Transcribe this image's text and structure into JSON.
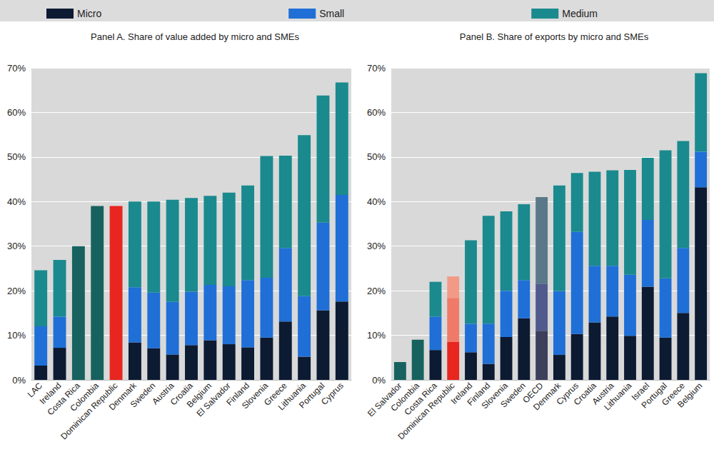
{
  "chart_data": [
    {
      "type": "bar",
      "title": "Panel A. Share of value added by micro and SMEs",
      "stacked": true,
      "grid": true,
      "legend": "top",
      "categories": [
        "LAC",
        "Ireland",
        "Costa Rica",
        "Colombia",
        "Dominican Republic",
        "Denmark",
        "Sweden",
        "Austria",
        "Croatia",
        "Belgium",
        "El Salvador",
        "Finland",
        "Slovenia",
        "Greece",
        "Lithuania",
        "Portugal",
        "Cyprus"
      ],
      "ylim": [
        0,
        70
      ],
      "yticks": [
        {
          "value": 0,
          "label": "0%"
        },
        {
          "value": 10,
          "label": "10%"
        },
        {
          "value": 20,
          "label": "20%"
        },
        {
          "value": 30,
          "label": "30%"
        },
        {
          "value": 40,
          "label": "40%"
        },
        {
          "value": 50,
          "label": "50%"
        },
        {
          "value": 60,
          "label": "60%"
        },
        {
          "value": 70,
          "label": "70%"
        }
      ],
      "series": [
        {
          "name": "Micro",
          "color": "#0c1a32",
          "values": [
            3.2,
            7.2,
            null,
            null,
            null,
            8.4,
            7.1,
            5.7,
            7.8,
            8.9,
            8.0,
            7.3,
            9.5,
            13.1,
            5.2,
            15.6,
            17.6
          ]
        },
        {
          "name": "Small",
          "color": "#1f6fd6",
          "values": [
            8.8,
            7.0,
            null,
            null,
            null,
            12.4,
            12.5,
            11.8,
            12.0,
            12.4,
            13.0,
            15.1,
            13.4,
            16.5,
            13.6,
            19.7,
            23.9
          ]
        },
        {
          "name": "Medium",
          "color": "#1a8a8e",
          "values": [
            12.6,
            12.7,
            null,
            null,
            null,
            19.2,
            20.4,
            22.9,
            21.0,
            20.0,
            21.0,
            21.2,
            27.3,
            20.7,
            36.1,
            28.5,
            25.2
          ]
        },
        {
          "color": "#17625f",
          "values": [
            null,
            null,
            30,
            39,
            39,
            null,
            null,
            null,
            null,
            null,
            null,
            null,
            null,
            null,
            null,
            null,
            null
          ],
          "colors": [
            "#17625f",
            "#17625f",
            "#17625f",
            "#17625f",
            "#e8251f",
            "#17625f",
            "#17625f",
            "#17625f",
            "#17625f",
            "#17625f",
            "#17625f",
            "#17625f",
            "#17625f",
            "#17625f",
            "#17625f",
            "#17625f",
            "#17625f"
          ]
        }
      ]
    },
    {
      "type": "bar",
      "title": "Panel B. Share of exports by micro and SMEs",
      "stacked": true,
      "grid": true,
      "legend": "top",
      "categories": [
        "El Salvador",
        "Colombia",
        "Costa Rica",
        "Dominican Republic",
        "Ireland",
        "Finland",
        "Slovenia",
        "Sweden",
        "OECD",
        "Denmark",
        "Cyprus",
        "Croatia",
        "Austria",
        "Lithuania",
        "Israel",
        "Portugal",
        "Greece",
        "Belgium"
      ],
      "ylim": [
        0,
        70
      ],
      "yticks": [
        {
          "value": 0,
          "label": "0%"
        },
        {
          "value": 10,
          "label": "10%"
        },
        {
          "value": 20,
          "label": "20%"
        },
        {
          "value": 30,
          "label": "30%"
        },
        {
          "value": 40,
          "label": "40%"
        },
        {
          "value": 50,
          "label": "50%"
        },
        {
          "value": 60,
          "label": "60%"
        },
        {
          "value": 70,
          "label": "70%"
        }
      ],
      "series": [
        {
          "name": "Micro",
          "color": "#0c1a32",
          "values": [
            null,
            null,
            6.7,
            8.5,
            6.2,
            3.6,
            9.6,
            13.8,
            11.0,
            5.6,
            10.3,
            12.9,
            14.2,
            9.9,
            20.9,
            9.5,
            15.0,
            43.2
          ],
          "colors": [
            "#0c1a32",
            "#0c1a32",
            "#0c1a32",
            "#e8251f",
            "#0c1a32",
            "#0c1a32",
            "#0c1a32",
            "#0c1a32",
            "#3b3f5a",
            "#0c1a32",
            "#0c1a32",
            "#0c1a32",
            "#0c1a32",
            "#0c1a32",
            "#0c1a32",
            "#0c1a32",
            "#0c1a32",
            "#0c1a32"
          ]
        },
        {
          "name": "Small",
          "color": "#1f6fd6",
          "values": [
            null,
            null,
            7.5,
            9.9,
            6.4,
            9.0,
            10.4,
            8.6,
            10.6,
            14.3,
            22.9,
            12.7,
            11.4,
            13.7,
            15.0,
            13.3,
            14.6,
            8.0
          ],
          "colors": [
            "#1f6fd6",
            "#1f6fd6",
            "#1f6fd6",
            "#f07a68",
            "#1f6fd6",
            "#1f6fd6",
            "#1f6fd6",
            "#1f6fd6",
            "#505a8c",
            "#1f6fd6",
            "#1f6fd6",
            "#1f6fd6",
            "#1f6fd6",
            "#1f6fd6",
            "#1f6fd6",
            "#1f6fd6",
            "#1f6fd6",
            "#1f6fd6"
          ]
        },
        {
          "name": "Medium",
          "color": "#1a8a8e",
          "values": [
            null,
            null,
            7.8,
            4.8,
            18.7,
            24.2,
            17.8,
            17.0,
            19.4,
            23.7,
            13.2,
            21.1,
            21.4,
            23.5,
            13.9,
            28.7,
            24.0,
            17.6
          ],
          "colors": [
            "#1a8a8e",
            "#1a8a8e",
            "#1a8a8e",
            "#f29a86",
            "#1a8a8e",
            "#1a8a8e",
            "#1a8a8e",
            "#1a8a8e",
            "#5a7888",
            "#1a8a8e",
            "#1a8a8e",
            "#1a8a8e",
            "#1a8a8e",
            "#1a8a8e",
            "#1a8a8e",
            "#1a8a8e",
            "#1a8a8e",
            "#1a8a8e"
          ]
        },
        {
          "color": "#17625f",
          "values": [
            4,
            9,
            null,
            null,
            null,
            null,
            null,
            null,
            null,
            null,
            null,
            null,
            null,
            null,
            null,
            null,
            null,
            null
          ]
        }
      ]
    }
  ]
}
